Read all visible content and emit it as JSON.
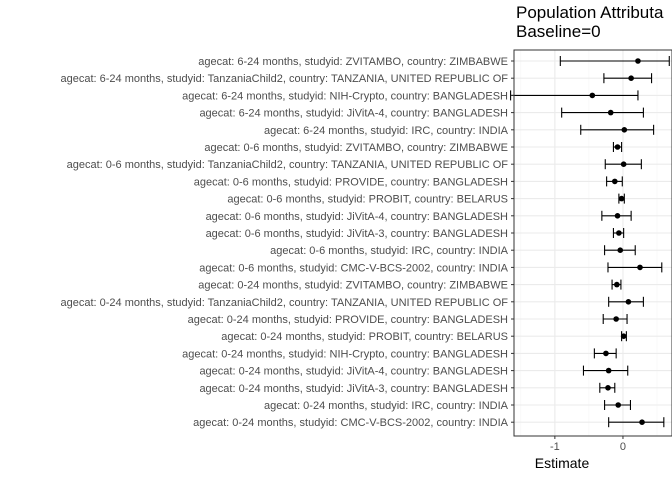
{
  "chart_data": {
    "type": "forest",
    "title": "Population Attributa",
    "subtitle": "Baseline=0",
    "xlabel": "Estimate",
    "ylabel": "",
    "xlim": [
      -1.6,
      0.72
    ],
    "x_ticks": [
      -1,
      0
    ],
    "x_tick_labels": [
      "-1",
      "0"
    ],
    "grid": true,
    "colors": {
      "point": "#000000",
      "panel_border": "#333333",
      "grid_major": "#ebebeb",
      "grid_minor": "#f5f5f5"
    },
    "rows": [
      {
        "label": "agecat: 6-24 months, studyid: ZVITAMBO, country: ZIMBABWE",
        "estimate": 0.22,
        "lower": -0.92,
        "upper": 0.68
      },
      {
        "label": "agecat: 6-24 months, studyid: TanzaniaChild2, country: TANZANIA, UNITED REPUBLIC OF",
        "estimate": 0.12,
        "lower": -0.28,
        "upper": 0.42
      },
      {
        "label": "agecat: 6-24 months, studyid: NIH-Crypto, country: BANGLADESH",
        "estimate": -0.45,
        "lower": -1.65,
        "upper": 0.22
      },
      {
        "label": "agecat: 6-24 months, studyid: JiVitA-4, country: BANGLADESH",
        "estimate": -0.18,
        "lower": -0.9,
        "upper": 0.3
      },
      {
        "label": "agecat: 6-24 months, studyid: IRC, country: INDIA",
        "estimate": 0.02,
        "lower": -0.62,
        "upper": 0.45
      },
      {
        "label": "agecat: 0-6 months, studyid: ZVITAMBO, country: ZIMBABWE",
        "estimate": -0.08,
        "lower": -0.14,
        "upper": -0.02
      },
      {
        "label": "agecat: 0-6 months, studyid: TanzaniaChild2, country: TANZANIA, UNITED REPUBLIC OF",
        "estimate": 0.01,
        "lower": -0.26,
        "upper": 0.27
      },
      {
        "label": "agecat: 0-6 months, studyid: PROVIDE, country: BANGLADESH",
        "estimate": -0.12,
        "lower": -0.24,
        "upper": -0.01
      },
      {
        "label": "agecat: 0-6 months, studyid: PROBIT, country: BELARUS",
        "estimate": -0.02,
        "lower": -0.06,
        "upper": 0.02
      },
      {
        "label": "agecat: 0-6 months, studyid: JiVitA-4, country: BANGLADESH",
        "estimate": -0.08,
        "lower": -0.31,
        "upper": 0.12
      },
      {
        "label": "agecat: 0-6 months, studyid: JiVitA-3, country: BANGLADESH",
        "estimate": -0.06,
        "lower": -0.14,
        "upper": 0.01
      },
      {
        "label": "agecat: 0-6 months, studyid: IRC, country: INDIA",
        "estimate": -0.04,
        "lower": -0.27,
        "upper": 0.18
      },
      {
        "label": "agecat: 0-6 months, studyid: CMC-V-BCS-2002, country: INDIA",
        "estimate": 0.25,
        "lower": -0.22,
        "upper": 0.57
      },
      {
        "label": "agecat: 0-24 months, studyid: ZVITAMBO, country: ZIMBABWE",
        "estimate": -0.09,
        "lower": -0.16,
        "upper": -0.03
      },
      {
        "label": "agecat: 0-24 months, studyid: TanzaniaChild2, country: TANZANIA, UNITED REPUBLIC OF",
        "estimate": 0.08,
        "lower": -0.21,
        "upper": 0.3
      },
      {
        "label": "agecat: 0-24 months, studyid: PROVIDE, country: BANGLADESH",
        "estimate": -0.1,
        "lower": -0.29,
        "upper": 0.06
      },
      {
        "label": "agecat: 0-24 months, studyid: PROBIT, country: BELARUS",
        "estimate": 0.01,
        "lower": -0.02,
        "upper": 0.05
      },
      {
        "label": "agecat: 0-24 months, studyid: NIH-Crypto, country: BANGLADESH",
        "estimate": -0.25,
        "lower": -0.42,
        "upper": -0.1
      },
      {
        "label": "agecat: 0-24 months, studyid: JiVitA-4, country: BANGLADESH",
        "estimate": -0.21,
        "lower": -0.58,
        "upper": 0.07
      },
      {
        "label": "agecat: 0-24 months, studyid: JiVitA-3, country: BANGLADESH",
        "estimate": -0.22,
        "lower": -0.34,
        "upper": -0.12
      },
      {
        "label": "agecat: 0-24 months, studyid: IRC, country: INDIA",
        "estimate": -0.07,
        "lower": -0.27,
        "upper": 0.11
      },
      {
        "label": "agecat: 0-24 months, studyid: CMC-V-BCS-2002, country: INDIA",
        "estimate": 0.28,
        "lower": -0.21,
        "upper": 0.6
      }
    ]
  }
}
